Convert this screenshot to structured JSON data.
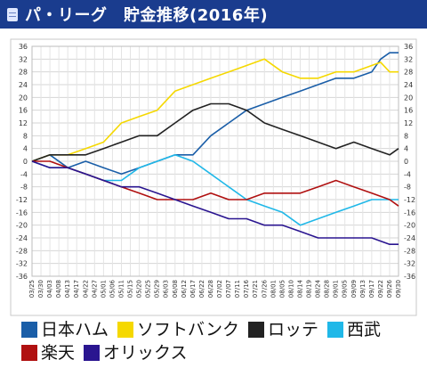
{
  "header": {
    "title": "パ・リーグ　貯金推移(2016年)",
    "icon": "document-icon"
  },
  "chart_data": {
    "type": "line",
    "title": "",
    "xlabel": "",
    "ylabel": "",
    "ylim": [
      -36,
      36
    ],
    "yticks": [
      36,
      32,
      28,
      24,
      20,
      16,
      12,
      8,
      4,
      0,
      -4,
      -8,
      -12,
      -16,
      -20,
      -24,
      -28,
      -32,
      -36
    ],
    "grid": true,
    "legend_position": "bottom",
    "x_tick_labels": [
      "03/25",
      "03/30",
      "04/03",
      "04/08",
      "04/13",
      "04/17",
      "04/22",
      "04/27",
      "05/01",
      "05/06",
      "05/11",
      "05/15",
      "05/20",
      "05/25",
      "05/29",
      "06/03",
      "06/08",
      "06/12",
      "06/17",
      "06/22",
      "06/28",
      "07/02",
      "07/07",
      "07/11",
      "07/16",
      "07/21",
      "07/26",
      "08/01",
      "08/05",
      "08/10",
      "08/14",
      "08/19",
      "08/24",
      "08/28",
      "09/01",
      "09/05",
      "09/09",
      "09/13",
      "09/17",
      "09/22",
      "09/26",
      "09/30"
    ],
    "x_range": [
      0,
      41
    ],
    "series": [
      {
        "name": "日本ハム",
        "color": "#1a5ea8",
        "points": [
          [
            0,
            0
          ],
          [
            2,
            2
          ],
          [
            4,
            -2
          ],
          [
            6,
            0
          ],
          [
            8,
            -2
          ],
          [
            10,
            -4
          ],
          [
            12,
            -2
          ],
          [
            14,
            0
          ],
          [
            16,
            2
          ],
          [
            18,
            2
          ],
          [
            20,
            8
          ],
          [
            22,
            12
          ],
          [
            24,
            16
          ],
          [
            26,
            18
          ],
          [
            28,
            20
          ],
          [
            30,
            22
          ],
          [
            32,
            24
          ],
          [
            34,
            26
          ],
          [
            36,
            26
          ],
          [
            38,
            28
          ],
          [
            39,
            32
          ],
          [
            40,
            34
          ],
          [
            41,
            34
          ]
        ]
      },
      {
        "name": "ソフトバンク",
        "color": "#f5d800",
        "points": [
          [
            0,
            0
          ],
          [
            2,
            2
          ],
          [
            4,
            2
          ],
          [
            6,
            4
          ],
          [
            8,
            6
          ],
          [
            10,
            12
          ],
          [
            12,
            14
          ],
          [
            14,
            16
          ],
          [
            16,
            22
          ],
          [
            18,
            24
          ],
          [
            20,
            26
          ],
          [
            22,
            28
          ],
          [
            24,
            30
          ],
          [
            26,
            32
          ],
          [
            28,
            28
          ],
          [
            30,
            26
          ],
          [
            32,
            26
          ],
          [
            34,
            28
          ],
          [
            36,
            28
          ],
          [
            38,
            30
          ],
          [
            39,
            31
          ],
          [
            40,
            28
          ],
          [
            41,
            28
          ]
        ]
      },
      {
        "name": "ロッテ",
        "color": "#222222",
        "points": [
          [
            0,
            0
          ],
          [
            2,
            2
          ],
          [
            4,
            2
          ],
          [
            6,
            2
          ],
          [
            8,
            4
          ],
          [
            10,
            6
          ],
          [
            12,
            8
          ],
          [
            14,
            8
          ],
          [
            16,
            12
          ],
          [
            18,
            16
          ],
          [
            20,
            18
          ],
          [
            22,
            18
          ],
          [
            24,
            16
          ],
          [
            26,
            12
          ],
          [
            28,
            10
          ],
          [
            30,
            8
          ],
          [
            32,
            6
          ],
          [
            34,
            4
          ],
          [
            36,
            6
          ],
          [
            38,
            4
          ],
          [
            40,
            2
          ],
          [
            41,
            4
          ]
        ]
      },
      {
        "name": "西武",
        "color": "#20b8e8",
        "points": [
          [
            0,
            0
          ],
          [
            2,
            -2
          ],
          [
            4,
            -2
          ],
          [
            6,
            -4
          ],
          [
            8,
            -6
          ],
          [
            10,
            -6
          ],
          [
            12,
            -2
          ],
          [
            14,
            0
          ],
          [
            16,
            2
          ],
          [
            18,
            0
          ],
          [
            20,
            -4
          ],
          [
            22,
            -8
          ],
          [
            24,
            -12
          ],
          [
            26,
            -14
          ],
          [
            28,
            -16
          ],
          [
            30,
            -20
          ],
          [
            32,
            -18
          ],
          [
            34,
            -16
          ],
          [
            36,
            -14
          ],
          [
            38,
            -12
          ],
          [
            40,
            -12
          ],
          [
            41,
            -12
          ]
        ]
      },
      {
        "name": "楽天",
        "color": "#b01010",
        "points": [
          [
            0,
            0
          ],
          [
            2,
            0
          ],
          [
            4,
            -2
          ],
          [
            6,
            -4
          ],
          [
            8,
            -6
          ],
          [
            10,
            -8
          ],
          [
            12,
            -10
          ],
          [
            14,
            -12
          ],
          [
            16,
            -12
          ],
          [
            18,
            -12
          ],
          [
            20,
            -10
          ],
          [
            22,
            -12
          ],
          [
            24,
            -12
          ],
          [
            26,
            -10
          ],
          [
            28,
            -10
          ],
          [
            30,
            -10
          ],
          [
            32,
            -8
          ],
          [
            34,
            -6
          ],
          [
            36,
            -8
          ],
          [
            38,
            -10
          ],
          [
            40,
            -12
          ],
          [
            41,
            -14
          ]
        ]
      },
      {
        "name": "オリックス",
        "color": "#2a1590",
        "points": [
          [
            0,
            0
          ],
          [
            2,
            -2
          ],
          [
            4,
            -2
          ],
          [
            6,
            -4
          ],
          [
            8,
            -6
          ],
          [
            10,
            -8
          ],
          [
            12,
            -8
          ],
          [
            14,
            -10
          ],
          [
            16,
            -12
          ],
          [
            18,
            -14
          ],
          [
            20,
            -16
          ],
          [
            22,
            -18
          ],
          [
            24,
            -18
          ],
          [
            26,
            -20
          ],
          [
            28,
            -20
          ],
          [
            30,
            -22
          ],
          [
            32,
            -24
          ],
          [
            34,
            -24
          ],
          [
            36,
            -24
          ],
          [
            38,
            -24
          ],
          [
            40,
            -26
          ],
          [
            41,
            -26
          ]
        ]
      }
    ]
  }
}
